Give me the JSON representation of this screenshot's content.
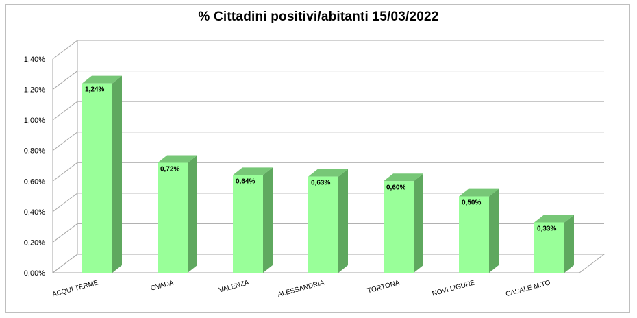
{
  "chart_data": {
    "type": "bar",
    "title": "% Cittadini positivi/abitanti 15/03/2022",
    "xlabel": "",
    "ylabel": "",
    "categories": [
      "ACQUI TERME",
      "OVADA",
      "VALENZA",
      "ALESSANDRIA",
      "TORTONA",
      "NOVI LIGURE",
      "CASALE M.TO"
    ],
    "values": [
      1.24,
      0.72,
      0.64,
      0.63,
      0.6,
      0.5,
      0.33
    ],
    "value_labels": [
      "1,24%",
      "0,72%",
      "0,64%",
      "0,63%",
      "0,60%",
      "0,50%",
      "0,33%"
    ],
    "ylim": [
      0,
      1.4
    ],
    "yticks": [
      0,
      0.2,
      0.4,
      0.6,
      0.8,
      1.0,
      1.2,
      1.4
    ],
    "ytick_labels": [
      "0,00%",
      "0,20%",
      "0,40%",
      "0,60%",
      "0,80%",
      "1,00%",
      "1,20%",
      "1,40%"
    ],
    "grid": true,
    "style": "3d-column",
    "colors": {
      "bar_front": "#99ff99",
      "bar_side": "#5fa85f",
      "bar_top": "#77c777",
      "grid": "#a6a6a6"
    }
  }
}
